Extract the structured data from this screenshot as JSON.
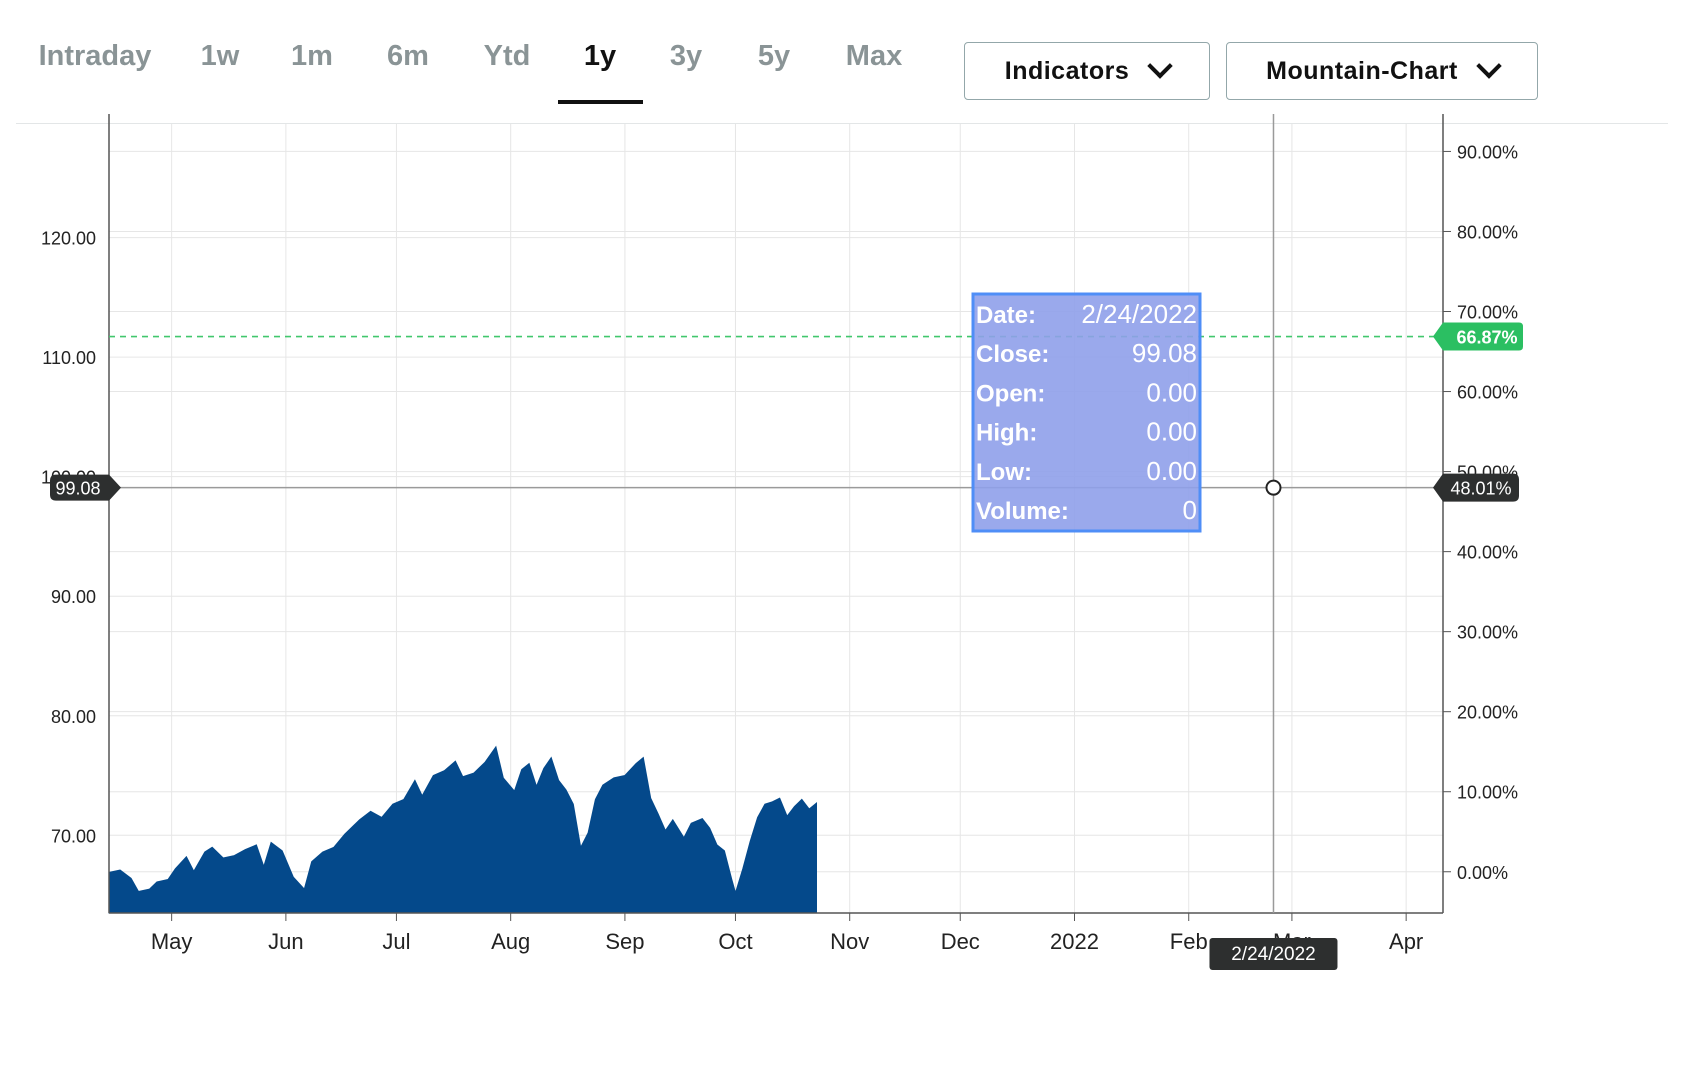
{
  "tabs": {
    "items": [
      "Intraday",
      "1w",
      "1m",
      "6m",
      "Ytd",
      "1y",
      "3y",
      "5y",
      "Max"
    ],
    "active": "1y"
  },
  "controls": {
    "indicators_label": "Indicators",
    "chart_type_label": "Mountain-Chart"
  },
  "colors": {
    "area_fill": "#04498b",
    "grid": "#e6e6e6",
    "tooltip_bg": "#8fa0ea",
    "tooltip_border": "#4f8ef7",
    "reference_line": "#41c76d",
    "badge_dark": "#2d2f2f",
    "badge_green": "#2bbf62"
  },
  "tooltip": {
    "rows": [
      {
        "label": "Date:",
        "value": "2/24/2022"
      },
      {
        "label": "Close:",
        "value": "99.08"
      },
      {
        "label": "Open:",
        "value": "0.00"
      },
      {
        "label": "High:",
        "value": "0.00"
      },
      {
        "label": "Low:",
        "value": "0.00"
      },
      {
        "label": "Volume:",
        "value": "0"
      }
    ]
  },
  "crosshair": {
    "date": "2022-02-24",
    "date_label": "2/24/2022",
    "price": 99.08,
    "price_label": "99.08",
    "percent_label": "48.01%"
  },
  "reference": {
    "percent": 66.87,
    "label": "66.87%"
  },
  "chart_data": {
    "type": "area",
    "title": "",
    "xlabel": "",
    "ylabel": "",
    "grid": true,
    "x_ticks": [
      {
        "label": "May",
        "date": "2021-05-01"
      },
      {
        "label": "Jun",
        "date": "2021-06-01"
      },
      {
        "label": "Jul",
        "date": "2021-07-01"
      },
      {
        "label": "Aug",
        "date": "2021-08-01"
      },
      {
        "label": "Sep",
        "date": "2021-09-01"
      },
      {
        "label": "Oct",
        "date": "2021-10-01"
      },
      {
        "label": "Nov",
        "date": "2021-11-01"
      },
      {
        "label": "Dec",
        "date": "2021-12-01"
      },
      {
        "label": "2022",
        "date": "2022-01-01"
      },
      {
        "label": "Feb",
        "date": "2022-02-01"
      },
      {
        "label": "Mar",
        "date": "2022-03-01"
      },
      {
        "label": "Apr",
        "date": "2022-04-01"
      }
    ],
    "x_range": [
      "2021-04-14",
      "2022-04-11"
    ],
    "y_left": {
      "ticks": [
        70,
        80,
        90,
        100,
        110,
        120
      ],
      "tick_labels": [
        "70.00",
        "80.00",
        "90.00",
        "100.00",
        "110.00",
        "120.00"
      ],
      "range": [
        63.5,
        129.5
      ]
    },
    "y_right": {
      "ticks": [
        0,
        10,
        20,
        30,
        40,
        50,
        60,
        70,
        80,
        90
      ],
      "tick_labels": [
        "0.00%",
        "10.00%",
        "20.00%",
        "30.00%",
        "40.00%",
        "50.00%",
        "60.00%",
        "70.00%",
        "80.00%",
        "90.00%"
      ],
      "base_price": 66.95
    },
    "series": [
      {
        "points": [
          [
            "2021-04-14",
            66.9
          ],
          [
            "2021-04-17",
            67.1
          ],
          [
            "2021-04-20",
            66.4
          ],
          [
            "2021-04-22",
            65.3
          ],
          [
            "2021-04-25",
            65.5
          ],
          [
            "2021-04-27",
            66.1
          ],
          [
            "2021-04-30",
            66.3
          ],
          [
            "2021-05-02",
            67.2
          ],
          [
            "2021-05-05",
            68.2
          ],
          [
            "2021-05-07",
            67.0
          ],
          [
            "2021-05-10",
            68.6
          ],
          [
            "2021-05-12",
            69.0
          ],
          [
            "2021-05-15",
            68.1
          ],
          [
            "2021-05-18",
            68.3
          ],
          [
            "2021-05-21",
            68.8
          ],
          [
            "2021-05-24",
            69.2
          ],
          [
            "2021-05-26",
            67.4
          ],
          [
            "2021-05-28",
            69.4
          ],
          [
            "2021-05-31",
            68.7
          ],
          [
            "2021-06-03",
            66.5
          ],
          [
            "2021-06-06",
            65.5
          ],
          [
            "2021-06-08",
            67.8
          ],
          [
            "2021-06-11",
            68.6
          ],
          [
            "2021-06-14",
            69.0
          ],
          [
            "2021-06-17",
            70.1
          ],
          [
            "2021-06-21",
            71.3
          ],
          [
            "2021-06-24",
            72.0
          ],
          [
            "2021-06-27",
            71.5
          ],
          [
            "2021-06-30",
            72.6
          ],
          [
            "2021-07-03",
            73.0
          ],
          [
            "2021-07-06",
            74.6
          ],
          [
            "2021-07-08",
            73.3
          ],
          [
            "2021-07-11",
            75.0
          ],
          [
            "2021-07-14",
            75.4
          ],
          [
            "2021-07-17",
            76.2
          ],
          [
            "2021-07-19",
            74.9
          ],
          [
            "2021-07-22",
            75.2
          ],
          [
            "2021-07-25",
            76.1
          ],
          [
            "2021-07-28",
            77.4
          ],
          [
            "2021-07-30",
            74.8
          ],
          [
            "2021-08-02",
            73.7
          ],
          [
            "2021-08-04",
            75.5
          ],
          [
            "2021-08-06",
            76.0
          ],
          [
            "2021-08-08",
            74.1
          ],
          [
            "2021-08-10",
            75.6
          ],
          [
            "2021-08-12",
            76.5
          ],
          [
            "2021-08-14",
            74.6
          ],
          [
            "2021-08-16",
            73.8
          ],
          [
            "2021-08-18",
            72.6
          ],
          [
            "2021-08-20",
            69.0
          ],
          [
            "2021-08-22",
            70.2
          ],
          [
            "2021-08-24",
            73.0
          ],
          [
            "2021-08-26",
            74.2
          ],
          [
            "2021-08-29",
            74.8
          ],
          [
            "2021-09-01",
            75.0
          ],
          [
            "2021-09-04",
            76.0
          ],
          [
            "2021-09-06",
            76.5
          ],
          [
            "2021-09-08",
            73.1
          ],
          [
            "2021-09-10",
            71.8
          ],
          [
            "2021-09-12",
            70.4
          ],
          [
            "2021-09-14",
            71.3
          ],
          [
            "2021-09-17",
            69.8
          ],
          [
            "2021-09-19",
            71.0
          ],
          [
            "2021-09-22",
            71.4
          ],
          [
            "2021-09-24",
            70.6
          ],
          [
            "2021-09-26",
            69.2
          ],
          [
            "2021-09-28",
            68.7
          ],
          [
            "2021-09-30",
            66.3
          ],
          [
            "2021-10-01",
            65.2
          ],
          [
            "2021-10-03",
            67.2
          ],
          [
            "2021-10-05",
            69.5
          ],
          [
            "2021-10-07",
            71.5
          ],
          [
            "2021-10-09",
            72.6
          ],
          [
            "2021-10-11",
            72.8
          ],
          [
            "2021-10-13",
            73.1
          ],
          [
            "2021-10-15",
            71.6
          ],
          [
            "2021-10-17",
            72.4
          ],
          [
            "2021-10-19",
            73.0
          ],
          [
            "2021-10-21",
            72.2
          ],
          [
            "2021-10-23",
            72.7
          ]
        ]
      }
    ]
  }
}
